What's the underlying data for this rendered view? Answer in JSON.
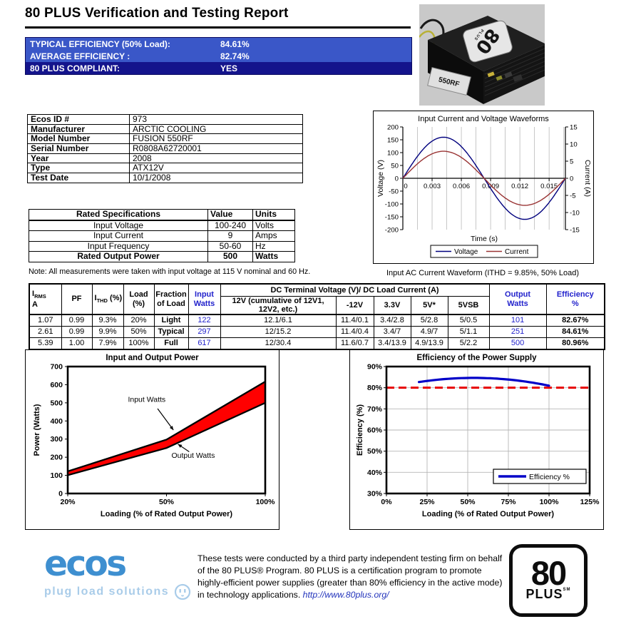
{
  "report": {
    "title": "80 PLUS Verification and Testing Report"
  },
  "summary": {
    "rows": [
      {
        "label": "TYPICAL EFFICIENCY (50% Load):",
        "value": "84.61%"
      },
      {
        "label": "AVERAGE EFFICIENCY :",
        "value": "82.74%"
      },
      {
        "label": "80 PLUS COMPLIANT:",
        "value": "YES"
      }
    ]
  },
  "product_info": {
    "rows": [
      [
        "Ecos ID #",
        "973"
      ],
      [
        "Manufacturer",
        "ARCTIC COOLING"
      ],
      [
        "Model Number",
        "FUSION 550RF"
      ],
      [
        "Serial Number",
        "R0808A62720001"
      ],
      [
        "Year",
        "2008"
      ],
      [
        "Type",
        "ATX12V"
      ],
      [
        "Test Date",
        "10/1/2008"
      ]
    ]
  },
  "rated_specs": {
    "headers": [
      "Rated Specifications",
      "Value",
      "Units"
    ],
    "rows": [
      [
        "Input Voltage",
        "100-240",
        "Volts"
      ],
      [
        "Input Current",
        "9",
        "Amps"
      ],
      [
        "Input Frequency",
        "50-60",
        "Hz"
      ],
      [
        "Rated Output Power",
        "500",
        "Watts"
      ]
    ],
    "note": "Note: All measurements were taken with input voltage at 115 V nominal and 60 Hz."
  },
  "load_table": {
    "headers": {
      "irms_main": "I",
      "irms_sub": "RMS",
      "irms_unit": "A",
      "pf": "PF",
      "ithd_main": "I",
      "ithd_sub": "THD",
      "ithd_rest": " (%)",
      "load": "Load\n(%)",
      "fraction": "Fraction\nof Load",
      "input_watts": "Input\nWatts",
      "dc_span": "DC Terminal Voltage (V)/ DC Load Current (A)",
      "v12": "12V (cumulative of 12V1, 12V2, etc.)",
      "vneg12": "-12V",
      "v33": "3.3V",
      "v5": "5V*",
      "v5sb": "5VSB",
      "output_watts": "Output\nWatts",
      "efficiency": "Efficiency\n%"
    },
    "rows": [
      [
        "1.07",
        "0.99",
        "9.3%",
        "20%",
        "Light",
        "122",
        "12.1/6.1",
        "11.4/0.1",
        "3.4/2.8",
        "5/2.8",
        "5/0.5",
        "101",
        "82.67%"
      ],
      [
        "2.61",
        "0.99",
        "9.9%",
        "50%",
        "Typical",
        "297",
        "12/15.2",
        "11.4/0.4",
        "3.4/7",
        "4.9/7",
        "5/1.1",
        "251",
        "84.61%"
      ],
      [
        "5.39",
        "1.00",
        "7.9%",
        "100%",
        "Full",
        "617",
        "12/30.4",
        "11.6/0.7",
        "3.4/13.9",
        "4.9/13.9",
        "5/2.2",
        "500",
        "80.96%"
      ]
    ]
  },
  "photo": {
    "badge_number": "80",
    "badge_plus": "PLUS",
    "label_text": "550RF"
  },
  "footer": {
    "ecos_word": "ecos",
    "ecos_tagline": "plug load solutions",
    "text": "These tests were conducted by a third party independent testing firm on behalf of the 80 PLUS® Program. 80 PLUS is a certification program to promote highly-efficient power supplies (greater than 80% efficiency in the active mode) in technology applications.  ",
    "url": "http://www.80plus.org/",
    "badge_number": "80",
    "badge_plus": "PLUS",
    "badge_sm": "SM"
  },
  "chart_data": [
    {
      "id": "waveform",
      "type": "line",
      "title": "Input Current and Voltage Waveforms",
      "caption": "Input AC Current Waveform (ITHD = 9.85%, 50% Load)",
      "xlabel": "Time (s)",
      "y_left_label": "Voltage (V)",
      "y_right_label": "Current (A)",
      "y_left": {
        "min": -200,
        "max": 200,
        "step": 50
      },
      "y_right": {
        "min": -15,
        "max": 15,
        "step": 5
      },
      "x_max": 0.01667,
      "x_grid_step": 0.0015,
      "x_tick_values": [
        0,
        0.003,
        0.006,
        0.009,
        0.012,
        0.015
      ],
      "x_tick_labels": [
        "0",
        "0.003",
        "0.006",
        "0.009",
        "0.012",
        "0.015"
      ],
      "series": [
        {
          "name": "Voltage",
          "peak": 160,
          "axis": "left",
          "color": "#00007e"
        },
        {
          "name": "Current",
          "peak": 7.9,
          "axis": "right",
          "color": "#993333"
        }
      ],
      "legend": [
        "Voltage",
        "Current"
      ]
    },
    {
      "id": "power",
      "type": "area",
      "title": "Input and Output Power",
      "xlabel": "Loading (% of Rated Output Power)",
      "ylabel": "Power (Watts)",
      "categories": [
        "20%",
        "50%",
        "100%"
      ],
      "series": [
        {
          "name": "Input Watts",
          "values": [
            122,
            297,
            617
          ]
        },
        {
          "name": "Output Watts",
          "values": [
            101,
            251,
            500
          ]
        }
      ],
      "ylim": [
        0,
        700
      ],
      "ystep": 100,
      "fill_color": "#ff0000",
      "annotations": [
        "Input Watts",
        "Output Watts"
      ]
    },
    {
      "id": "efficiency",
      "type": "line",
      "title": "Efficiency of the Power Supply",
      "xlabel": "Loading (% of Rated Output Power)",
      "ylabel": "Efficiency (%)",
      "x": [
        20,
        50,
        100
      ],
      "values": [
        82.67,
        84.61,
        80.96
      ],
      "xlim": [
        0,
        125
      ],
      "x_tick_values": [
        0,
        25,
        50,
        75,
        100,
        125
      ],
      "x_tick_labels": [
        "0%",
        "25%",
        "50%",
        "75%",
        "100%",
        "125%"
      ],
      "ylim": [
        30,
        90
      ],
      "ystep": 10,
      "y_tick_labels": [
        "30%",
        "40%",
        "50%",
        "60%",
        "70%",
        "80%",
        "90%"
      ],
      "threshold": 80,
      "threshold_color": "#e80000",
      "line_color": "#0000c8",
      "legend": "Efficiency %"
    }
  ]
}
